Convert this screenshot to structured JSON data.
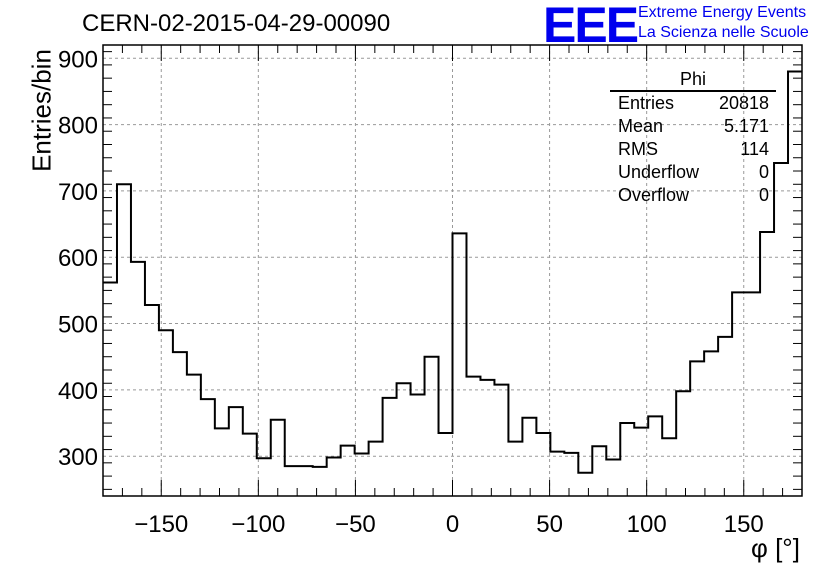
{
  "title": "CERN-02-2015-04-29-00090",
  "logo": {
    "mark": "EEE",
    "line1": "Extreme Energy Events",
    "line2": "La Scienza nelle Scuole"
  },
  "stats": {
    "title": "Phi",
    "rows": [
      {
        "label": "Entries",
        "value": "20818"
      },
      {
        "label": "Mean",
        "value": "5.171"
      },
      {
        "label": "RMS",
        "value": "114"
      },
      {
        "label": "Underflow",
        "value": "0"
      },
      {
        "label": "Overflow",
        "value": "0"
      }
    ]
  },
  "chart_data": {
    "type": "histogram",
    "title": "CERN-02-2015-04-29-00090",
    "xlabel": "φ [°]",
    "ylabel": "Entries/bin",
    "xlim": [
      -180,
      180
    ],
    "ylim": [
      240,
      920
    ],
    "xticks": [
      -150,
      -100,
      -50,
      0,
      50,
      100,
      150
    ],
    "yticks": [
      300,
      400,
      500,
      600,
      700,
      800,
      900
    ],
    "grid": true,
    "bin_width": 7.2,
    "bin_edges_start": -180,
    "values": [
      562,
      710,
      593,
      528,
      490,
      457,
      423,
      386,
      342,
      374,
      334,
      297,
      355,
      285,
      285,
      284,
      298,
      316,
      304,
      322,
      388,
      410,
      393,
      450,
      335,
      636,
      420,
      415,
      408,
      322,
      358,
      335,
      307,
      305,
      275,
      315,
      295,
      350,
      343,
      360,
      327,
      398,
      443,
      458,
      480,
      547,
      547,
      638,
      742,
      880
    ]
  }
}
